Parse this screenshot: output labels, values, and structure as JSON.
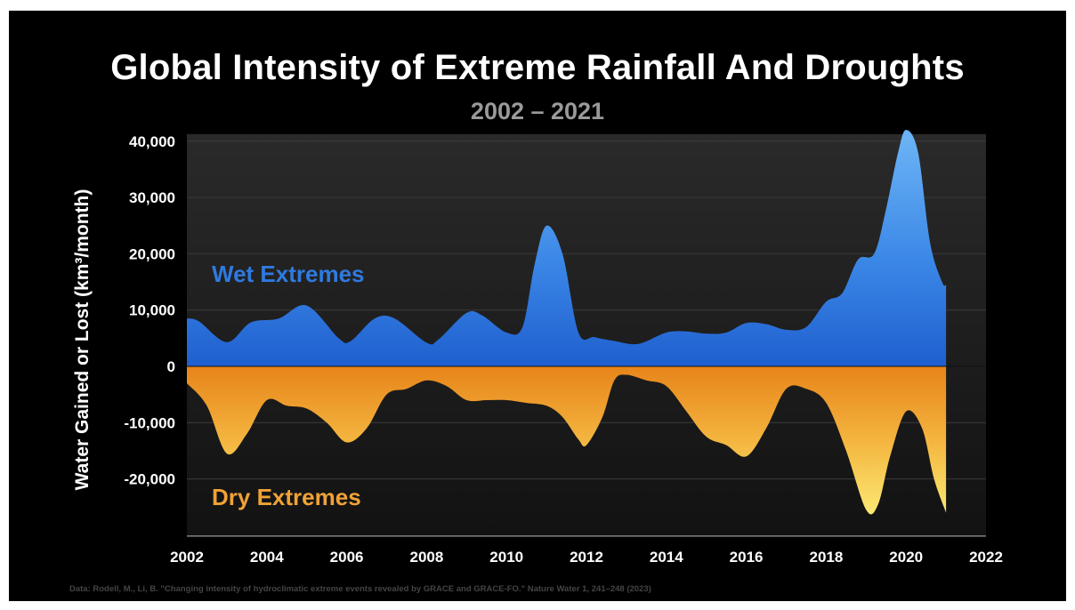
{
  "title": "Global Intensity of Extreme Rainfall And Droughts",
  "subtitle": "2002 – 2021",
  "footnote": "Data: Rodell, M., Li, B. \"Changing intensity of hydroclimatic extreme events revealed by GRACE and GRACE-FO.\" Nature Water 1, 241–248 (2023)",
  "chart_data": {
    "type": "area",
    "title": "Global Intensity of Extreme Rainfall And Droughts",
    "subtitle": "2002 – 2021",
    "ylabel": "Water Gained or Lost (km³/month)",
    "xlabel": "",
    "xlim": [
      2002,
      2022
    ],
    "ylim": [
      -30000,
      40000
    ],
    "x_ticks": [
      2002,
      2004,
      2006,
      2008,
      2010,
      2012,
      2014,
      2016,
      2018,
      2020,
      2022
    ],
    "x_tick_labels": [
      "2002",
      "2004",
      "2006",
      "2008",
      "2010",
      "2012",
      "2014",
      "2016",
      "2018",
      "2020",
      "2022"
    ],
    "y_ticks": [
      40000,
      30000,
      20000,
      10000,
      0,
      -10000,
      -20000
    ],
    "y_tick_labels": [
      "40,000",
      "30,000",
      "20,000",
      "10,000",
      "0",
      "-10,000",
      "-20,000"
    ],
    "grid": true,
    "series": [
      {
        "name": "Wet Extremes",
        "color": "#2b74d8",
        "x": [
          2002,
          2002.3,
          2003,
          2003.6,
          2004.3,
          2005,
          2005.8,
          2006.1,
          2006.7,
          2007.2,
          2008,
          2008.3,
          2009,
          2009.4,
          2010,
          2010.4,
          2010.7,
          2011,
          2011.4,
          2011.8,
          2012.2,
          2012.7,
          2013.3,
          2014,
          2014.5,
          2015,
          2015.5,
          2016,
          2016.5,
          2017,
          2017.5,
          2018,
          2018.4,
          2018.8,
          2019.2,
          2019.5,
          2019.8,
          2020,
          2020.3,
          2020.6,
          2020.9,
          2021
        ],
        "values": [
          8500,
          8000,
          4300,
          7800,
          8500,
          10800,
          5000,
          4500,
          8500,
          8500,
          4200,
          4800,
          9500,
          9000,
          6000,
          7000,
          18000,
          25000,
          20000,
          6000,
          5200,
          4500,
          4000,
          6000,
          6200,
          5800,
          6000,
          7700,
          7500,
          6500,
          7000,
          11500,
          13000,
          19000,
          20000,
          28000,
          38000,
          42000,
          38000,
          22000,
          15000,
          14500
        ]
      },
      {
        "name": "Dry Extremes",
        "color": "#f0a030",
        "x": [
          2002,
          2002.5,
          2003,
          2003.5,
          2004,
          2004.5,
          2005,
          2005.5,
          2006,
          2006.5,
          2007,
          2007.5,
          2008,
          2008.5,
          2009,
          2009.5,
          2010,
          2010.5,
          2011,
          2011.4,
          2011.8,
          2012,
          2012.4,
          2012.7,
          2013,
          2013.5,
          2014,
          2014.5,
          2015,
          2015.5,
          2016,
          2016.5,
          2017,
          2017.5,
          2018,
          2018.5,
          2019,
          2019.3,
          2019.6,
          2020,
          2020.4,
          2020.7,
          2021
        ],
        "values": [
          -3000,
          -7000,
          -15500,
          -12000,
          -6000,
          -7000,
          -7500,
          -10000,
          -13500,
          -11000,
          -5000,
          -4000,
          -2500,
          -3500,
          -6000,
          -6000,
          -6000,
          -6500,
          -7000,
          -9000,
          -13000,
          -14000,
          -9000,
          -2500,
          -1500,
          -2500,
          -3500,
          -8000,
          -12500,
          -14000,
          -16000,
          -11000,
          -4000,
          -4000,
          -6500,
          -15000,
          -25500,
          -24500,
          -16000,
          -8000,
          -11000,
          -20000,
          -26000
        ]
      }
    ],
    "annotations": [
      "Wet Extremes",
      "Dry Extremes"
    ]
  }
}
